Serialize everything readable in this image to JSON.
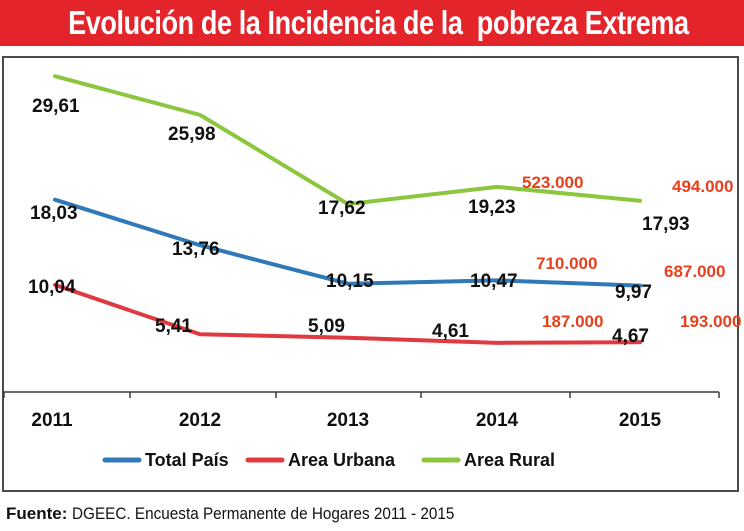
{
  "title": "Evolución de la Incidencia de la  pobreza Extrema",
  "source_label": "Fuente:",
  "source_text": "DGEEC. Encuesta Permanente de Hogares 2011 - 2015",
  "colors": {
    "title_bg": "#e3242b",
    "total": "#2f79b8",
    "urbana": "#de3a3f",
    "rural": "#8cc63f",
    "annotation": "#e8401c"
  },
  "chart_data": {
    "type": "line",
    "x": [
      "2011",
      "2012",
      "2013",
      "2014",
      "2015"
    ],
    "ylim": [
      0,
      33
    ],
    "grid": false,
    "legend_position": "bottom",
    "series": [
      {
        "name": "Total País",
        "key": "total",
        "values": [
          18.03,
          13.76,
          10.15,
          10.47,
          9.97
        ],
        "labels": [
          "18,03",
          "13,76",
          "10,15",
          "10,47",
          "9,97"
        ]
      },
      {
        "name": "Area Urbana",
        "key": "urbana",
        "values": [
          10.04,
          5.41,
          5.09,
          4.61,
          4.67
        ],
        "labels": [
          "10,04",
          "5,41",
          "5,09",
          "4,61",
          "4,67"
        ]
      },
      {
        "name": "Area Rural",
        "key": "rural",
        "values": [
          29.61,
          25.98,
          17.62,
          19.23,
          17.93
        ],
        "labels": [
          "29,61",
          "25,98",
          "17,62",
          "19,23",
          "17,93"
        ]
      }
    ],
    "annotations": [
      {
        "text": "523.000",
        "series": "rural",
        "year": "2014"
      },
      {
        "text": "494.000",
        "series": "rural",
        "year": "2015"
      },
      {
        "text": "710.000",
        "series": "total",
        "year": "2014"
      },
      {
        "text": "687.000",
        "series": "total",
        "year": "2015"
      },
      {
        "text": "187.000",
        "series": "urbana",
        "year": "2014"
      },
      {
        "text": "193.000",
        "series": "urbana",
        "year": "2015"
      }
    ]
  }
}
